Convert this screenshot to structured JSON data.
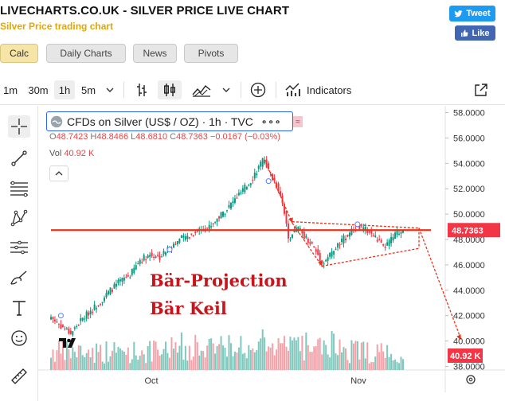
{
  "header": {
    "title": "LIVECHARTS.CO.UK - SILVER PRICE LIVE CHART",
    "subtitle": "Silver Price trading chart",
    "tweet_label": "Tweet",
    "like_label": "Like",
    "colors": {
      "subtitle": "#e0a800",
      "tweet": "#1d9bf0",
      "like": "#4267b2"
    }
  },
  "tabs": [
    {
      "label": "Calc",
      "active": true
    },
    {
      "label": "Daily Charts",
      "active": false
    },
    {
      "label": "News",
      "active": false
    },
    {
      "label": "Pivots",
      "active": false
    }
  ],
  "toolbar": {
    "intervals": [
      "1m",
      "30m",
      "1h",
      "5m"
    ],
    "selected_interval": "1h",
    "indicators_label": "Indicators",
    "icons": [
      "chevron-down-icon",
      "bar-chart-icon",
      "candles-icon",
      "area-chart-icon",
      "chevron-down-icon",
      "plus-circle-icon",
      "indicators-icon",
      "fullscreen-icon"
    ]
  },
  "left_tools": [
    "crosshair-icon",
    "trendline-icon",
    "fib-lines-icon",
    "pattern-icon",
    "projection-icon",
    "brush-icon",
    "text-icon",
    "emoji-icon",
    "ruler-icon"
  ],
  "legend": {
    "symbol": "CFDs on Silver (US$ / OZ) · 1h · TVC",
    "more": "∘∘∘",
    "tag": "≈",
    "ohlc": {
      "o_label": "O",
      "o": "48.7423",
      "h_label": "H",
      "h": "48.8466",
      "l_label": "L",
      "l": "48.6810",
      "c_label": "C",
      "c": "48.7363",
      "change": "−0.0167 (−0.03%)"
    },
    "vol_label": "Vol",
    "vol_value": "40.92 K"
  },
  "annotations": {
    "line1": "Bär-Projection",
    "line2": "Bär Keil",
    "color": "#c8151b"
  },
  "price_axis": {
    "ticks": [
      "58.0000",
      "56.0000",
      "54.0000",
      "52.0000",
      "50.0000",
      "48.0000",
      "46.0000",
      "44.0000",
      "42.0000",
      "40.0000",
      "38.0000"
    ],
    "last_price": "48.7363",
    "last_volume": "40.92 K",
    "badge_color": "#f23645"
  },
  "time_axis": {
    "ticks": [
      "Oct",
      "Nov"
    ]
  },
  "chart_data": {
    "type": "candlestick",
    "symbol": "CFDs on Silver (US$ / OZ)",
    "interval": "1h",
    "ylim": [
      37.5,
      58.5
    ],
    "close_path": [
      [
        0,
        41.9
      ],
      [
        5,
        41.2
      ],
      [
        10,
        40.6
      ],
      [
        15,
        41.6
      ],
      [
        20,
        42.4
      ],
      [
        25,
        43.1
      ],
      [
        30,
        44.0
      ],
      [
        35,
        44.7
      ],
      [
        40,
        45.2
      ],
      [
        45,
        46.4
      ],
      [
        50,
        46.8
      ],
      [
        55,
        46.6
      ],
      [
        60,
        47.4
      ],
      [
        65,
        48.0
      ],
      [
        70,
        48.3
      ],
      [
        75,
        48.8
      ],
      [
        80,
        49.0
      ],
      [
        85,
        49.8
      ],
      [
        90,
        50.6
      ],
      [
        95,
        51.5
      ],
      [
        100,
        52.4
      ],
      [
        103,
        53.2
      ],
      [
        106,
        53.9
      ],
      [
        108,
        54.4
      ],
      [
        110,
        53.4
      ],
      [
        113,
        52.6
      ],
      [
        116,
        51.6
      ],
      [
        118,
        50.2
      ],
      [
        120,
        48.0
      ],
      [
        122,
        48.5
      ],
      [
        125,
        48.9
      ],
      [
        128,
        48.3
      ],
      [
        132,
        47.6
      ],
      [
        135,
        46.8
      ],
      [
        137,
        46.1
      ],
      [
        140,
        46.6
      ],
      [
        145,
        47.5
      ],
      [
        150,
        48.4
      ],
      [
        155,
        49.0
      ],
      [
        160,
        48.7
      ],
      [
        165,
        48.0
      ],
      [
        168,
        47.3
      ],
      [
        171,
        47.8
      ],
      [
        175,
        48.5
      ],
      [
        178,
        48.74
      ]
    ],
    "last_close": 48.7363,
    "volume_last": "40.92 K",
    "horizontal_level": 48.7363,
    "time_labels": [
      "Oct",
      "Nov"
    ]
  }
}
